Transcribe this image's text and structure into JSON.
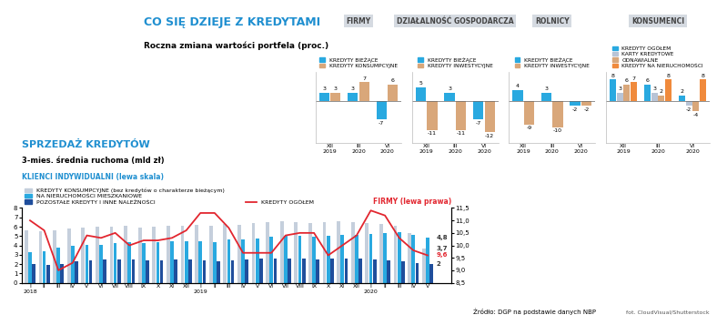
{
  "header": {
    "title": "CO SIĘ DZIEJE Z KREDYTAMI",
    "subtitle": "Roczna zmiana wartości portfela (proc.)"
  },
  "source": "Źródło: DGP na podstawie danych NBP",
  "credit": "fot. CloudVisual/Shutterstock",
  "chart_data": [
    {
      "type": "bar",
      "title": "FIRMY",
      "categories": [
        "XII\n2019",
        "III\n2020",
        "VI\n2020"
      ],
      "series": [
        {
          "name": "KREDYTY BIEŻĄCE",
          "color": "#29a9e0",
          "values": [
            3,
            3,
            -7
          ]
        },
        {
          "name": "KREDYTY KONSUMPCYJNE",
          "color": "#d9a77a",
          "values": [
            3,
            7,
            6
          ]
        }
      ],
      "ylim": [
        -16,
        11
      ],
      "tick_labels": "x",
      "data_labels": true,
      "legend": "top"
    },
    {
      "type": "bar",
      "title": "DZIAŁALNOŚĆ GOSPODARCZA",
      "categories": [
        "XII\n2019",
        "III\n2020",
        "VI\n2020"
      ],
      "series": [
        {
          "name": "KREDYTY BIEŻĄCE",
          "color": "#29a9e0",
          "values": [
            5,
            3,
            -7
          ]
        },
        {
          "name": "KREDYTY INWESTYCYJNE",
          "color": "#d9a77a",
          "values": [
            -11,
            -11,
            -12
          ]
        }
      ],
      "ylim": [
        -16,
        11
      ],
      "tick_labels": "x",
      "data_labels": true,
      "legend": "top"
    },
    {
      "type": "bar",
      "title": "ROLNICY",
      "categories": [
        "XII\n2019",
        "III\n2020",
        "VI\n2020"
      ],
      "series": [
        {
          "name": "KREDYTY BIEŻĄCE",
          "color": "#29a9e0",
          "values": [
            4,
            3,
            -2
          ]
        },
        {
          "name": "KREDYTY INWESTYCYJNE",
          "color": "#d9a77a",
          "values": [
            -9,
            -10,
            -2
          ]
        }
      ],
      "ylim": [
        -16,
        11
      ],
      "tick_labels": "x",
      "data_labels": true,
      "legend": "top"
    },
    {
      "type": "bar",
      "title": "KONSUMENCI",
      "categories": [
        "XII\n2019",
        "III\n2020",
        "VI\n2020"
      ],
      "series": [
        {
          "name": "KREDYTY OGÓŁEM",
          "color": "#29a9e0",
          "values": [
            8,
            6,
            2
          ]
        },
        {
          "name": "KARTY KREDYTOWE",
          "color": "#b8c4d6",
          "values": [
            3,
            3,
            -2
          ]
        },
        {
          "name": "ODNAWIALNE",
          "color": "#d9a77a",
          "values": [
            6,
            2,
            -4
          ]
        },
        {
          "name": "KREDYTY NA NIERUCHOMOŚCI",
          "color": "#f08a3c",
          "values": [
            7,
            8,
            8
          ]
        }
      ],
      "ylim": [
        -16,
        11
      ],
      "tick_labels": "x",
      "data_labels": true,
      "legend": "top"
    },
    {
      "type": "bar",
      "title": "SPRZEDAŻ KREDYTÓW",
      "subtitle": "3-mies. średnia ruchoma (mld zł)",
      "y_label": "KLIENCI INDYWIDUALNI (lewa skala)",
      "y2_label": "FIRMY (lewa prawa)",
      "categories": [
        "I\n2018",
        "II",
        "III",
        "IV",
        "V",
        "VI",
        "VII",
        "VIII",
        "IX",
        "X",
        "XI",
        "XII",
        "I\n2019",
        "II",
        "III",
        "IV",
        "V",
        "VI",
        "VII",
        "VIII",
        "IX",
        "X",
        "XI",
        "XII",
        "I\n2020",
        "II",
        "III",
        "IV",
        "V"
      ],
      "series": [
        {
          "name": "KREDYTY KONSUMPCYJNE (bez kredytów o charakterze bieżącym)",
          "type": "bar",
          "color": "#c5cfdc",
          "values": [
            5.6,
            5.5,
            5.6,
            5.8,
            5.9,
            6.0,
            6.0,
            6.1,
            5.9,
            6.0,
            6.1,
            6.1,
            6.2,
            6.1,
            6.3,
            6.2,
            6.4,
            6.5,
            6.6,
            6.5,
            6.4,
            6.5,
            6.6,
            6.5,
            6.4,
            6.3,
            6.1,
            5.3,
            3.7
          ],
          "value_labels": [
            null,
            null,
            null,
            null,
            null,
            null,
            null,
            null,
            null,
            null,
            null,
            null,
            null,
            null,
            null,
            null,
            null,
            null,
            null,
            null,
            null,
            null,
            null,
            null,
            null,
            null,
            null,
            null,
            "3,7"
          ]
        },
        {
          "name": "NA NIERUCHOMOŚCI MIESZKANIOWE",
          "type": "bar",
          "color": "#29a9e0",
          "values": [
            3.3,
            3.4,
            3.8,
            4.0,
            4.1,
            4.1,
            4.2,
            4.3,
            4.2,
            4.3,
            4.4,
            4.4,
            4.4,
            4.3,
            4.6,
            4.6,
            4.7,
            4.9,
            5.0,
            5.0,
            4.9,
            5.0,
            5.1,
            5.1,
            5.2,
            5.3,
            5.4,
            5.1,
            4.8
          ],
          "value_labels": [
            null,
            null,
            null,
            null,
            null,
            null,
            null,
            null,
            null,
            null,
            null,
            null,
            null,
            null,
            null,
            null,
            null,
            null,
            null,
            null,
            null,
            null,
            null,
            null,
            null,
            null,
            null,
            null,
            "4,8"
          ]
        },
        {
          "name": "POZOSTAŁE KREDYTY I INNE NALEŻNOŚCI",
          "type": "bar",
          "color": "#1f4e9c",
          "values": [
            2.0,
            1.9,
            2.0,
            2.3,
            2.4,
            2.5,
            2.5,
            2.5,
            2.4,
            2.4,
            2.5,
            2.5,
            2.4,
            2.3,
            2.4,
            2.5,
            2.6,
            2.6,
            2.6,
            2.6,
            2.5,
            2.6,
            2.6,
            2.6,
            2.5,
            2.4,
            2.3,
            2.1,
            2.0
          ],
          "value_labels": [
            null,
            null,
            null,
            null,
            null,
            null,
            null,
            null,
            null,
            null,
            null,
            null,
            null,
            null,
            null,
            null,
            null,
            null,
            null,
            null,
            null,
            null,
            null,
            null,
            null,
            null,
            null,
            null,
            "2"
          ]
        },
        {
          "name": "KREDYTY OGÓŁEM",
          "type": "line",
          "axis": "y2",
          "color": "#e2262f",
          "values": [
            11.0,
            10.6,
            9.0,
            9.3,
            10.4,
            10.3,
            10.5,
            10.0,
            10.2,
            10.2,
            10.3,
            10.6,
            11.3,
            11.3,
            10.7,
            9.7,
            9.7,
            9.7,
            10.4,
            10.5,
            10.5,
            9.6,
            10.0,
            10.4,
            11.4,
            11.2,
            10.3,
            9.8,
            9.6
          ],
          "value_labels": [
            null,
            null,
            null,
            null,
            null,
            null,
            null,
            null,
            null,
            null,
            null,
            null,
            null,
            null,
            null,
            null,
            null,
            null,
            null,
            null,
            null,
            null,
            null,
            null,
            null,
            null,
            null,
            null,
            "9,6"
          ]
        }
      ],
      "ylim": [
        0,
        8
      ],
      "yticks": [
        0,
        1,
        2,
        3,
        4,
        5,
        6,
        7,
        8
      ],
      "y2lim": [
        8.5,
        11.5
      ],
      "y2ticks": [
        {
          "value": 8.5,
          "label": "8,5"
        },
        {
          "value": 9.0,
          "label": "9,0"
        },
        {
          "value": 9.5,
          "label": "9,5"
        },
        {
          "value": 10.0,
          "label": "10,0"
        },
        {
          "value": 10.5,
          "label": "10,5"
        },
        {
          "value": 11.0,
          "label": "11,0"
        },
        {
          "value": 11.5,
          "label": "11,5"
        }
      ],
      "grid": false,
      "legend": "top"
    }
  ]
}
